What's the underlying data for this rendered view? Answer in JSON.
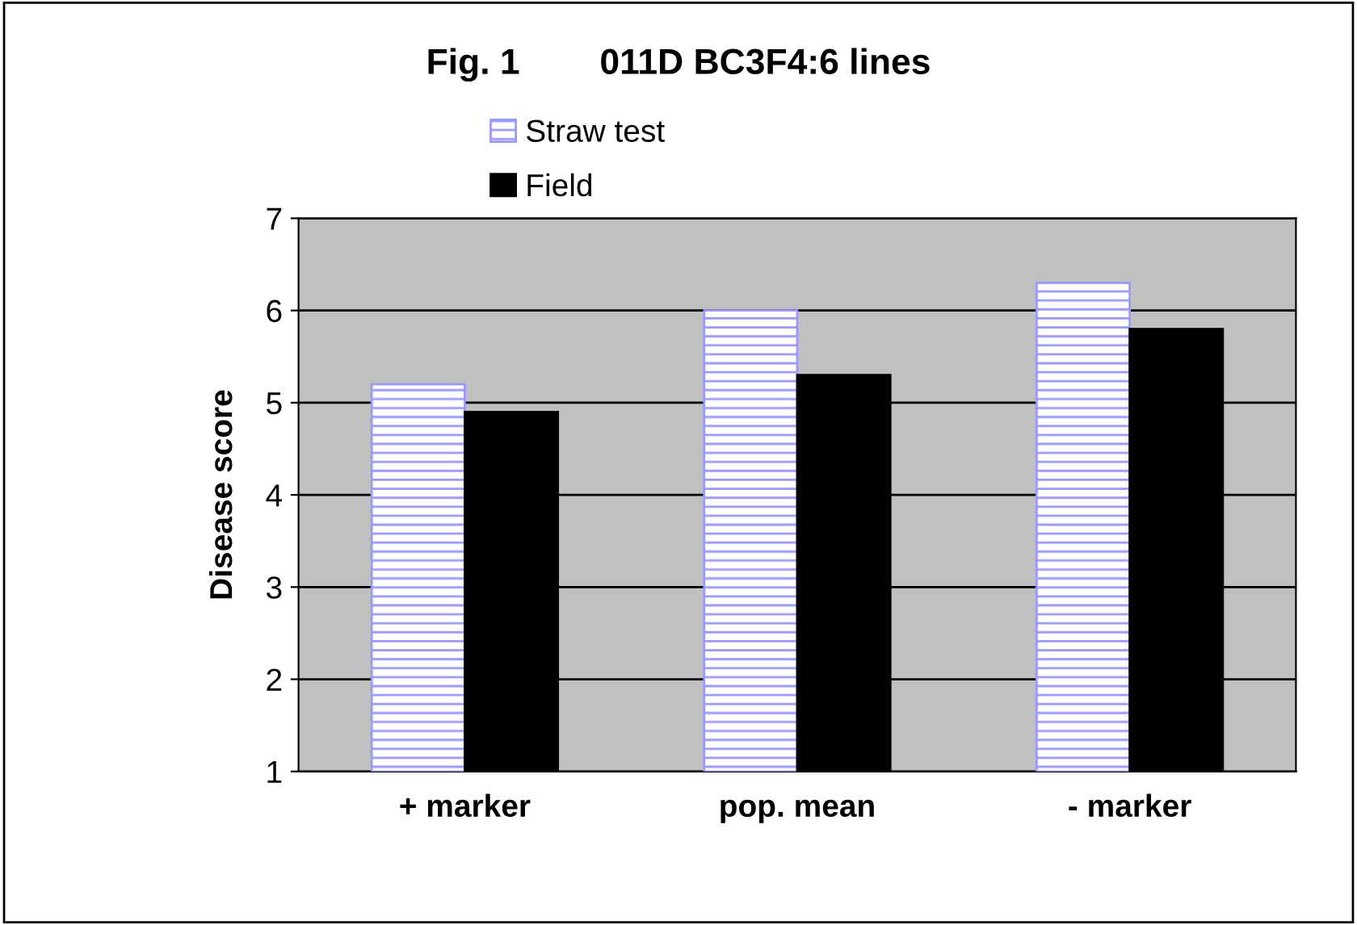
{
  "chart_data": {
    "type": "bar",
    "title": "Fig. 1        011D BC3F4:6 lines",
    "ylabel": "Disease score",
    "categories": [
      "+ marker",
      "pop. mean",
      "- marker"
    ],
    "series": [
      {
        "name": "Straw test",
        "color": "#9999ff",
        "values": [
          5.2,
          6.0,
          6.3
        ]
      },
      {
        "name": "Field",
        "color": "#000000",
        "values": [
          4.9,
          5.3,
          5.8
        ]
      }
    ],
    "ylim": [
      1,
      7
    ],
    "yticks": [
      1,
      2,
      3,
      4,
      5,
      6,
      7
    ],
    "grid": "y",
    "legend": "top"
  }
}
